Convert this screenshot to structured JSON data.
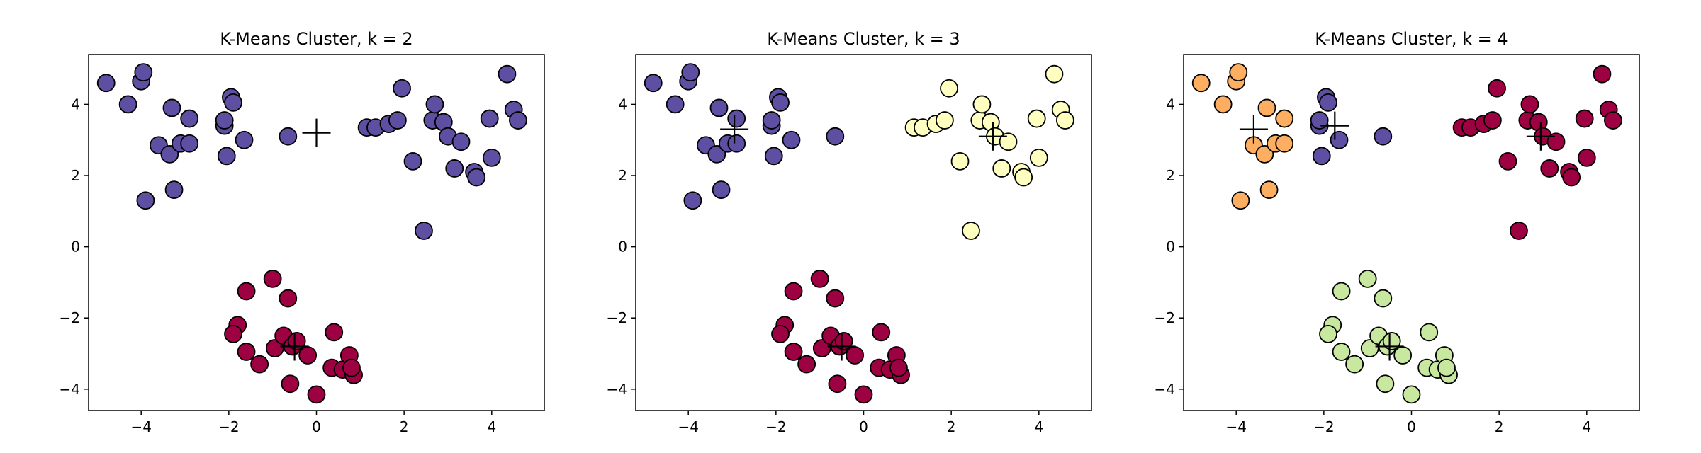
{
  "chart_data": [
    {
      "type": "scatter",
      "title": "K-Means Cluster, k = 2",
      "xlim": [
        -5.2,
        5.2
      ],
      "ylim": [
        -4.6,
        5.4
      ],
      "x_ticks": [
        -4,
        -2,
        0,
        2,
        4
      ],
      "x_tick_labels": [
        "−4",
        "−2",
        "0",
        "2",
        "4"
      ],
      "y_ticks": [
        -4,
        -2,
        0,
        2,
        4
      ],
      "y_tick_labels": [
        "−4",
        "−2",
        "0",
        "2",
        "4"
      ],
      "clusters": [
        {
          "color": "#5e4fa2",
          "points": [
            [
              -4.8,
              4.6
            ],
            [
              -4.3,
              4.0
            ],
            [
              -4.0,
              4.65
            ],
            [
              -3.95,
              4.9
            ],
            [
              -3.3,
              3.9
            ],
            [
              -3.6,
              2.85
            ],
            [
              -3.35,
              2.6
            ],
            [
              -3.1,
              2.9
            ],
            [
              -2.9,
              2.9
            ],
            [
              -2.9,
              3.6
            ],
            [
              -3.25,
              1.6
            ],
            [
              -3.9,
              1.3
            ],
            [
              -2.1,
              3.4
            ],
            [
              -2.1,
              3.55
            ],
            [
              -1.95,
              4.2
            ],
            [
              -1.9,
              4.05
            ],
            [
              -1.65,
              3.0
            ],
            [
              -2.05,
              2.55
            ],
            [
              -0.65,
              3.1
            ],
            [
              1.15,
              3.35
            ],
            [
              1.35,
              3.35
            ],
            [
              1.65,
              3.45
            ],
            [
              1.85,
              3.55
            ],
            [
              1.95,
              4.45
            ],
            [
              2.2,
              2.4
            ],
            [
              2.65,
              3.55
            ],
            [
              2.7,
              4.0
            ],
            [
              2.9,
              3.5
            ],
            [
              3.0,
              3.1
            ],
            [
              3.3,
              2.95
            ],
            [
              3.15,
              2.2
            ],
            [
              3.6,
              2.1
            ],
            [
              3.65,
              1.95
            ],
            [
              3.95,
              3.6
            ],
            [
              4.0,
              2.5
            ],
            [
              4.35,
              4.85
            ],
            [
              4.5,
              3.85
            ],
            [
              4.6,
              3.55
            ],
            [
              2.45,
              0.45
            ]
          ]
        },
        {
          "color": "#9e0142",
          "points": [
            [
              -1.0,
              -0.9
            ],
            [
              -0.65,
              -1.45
            ],
            [
              -1.6,
              -1.25
            ],
            [
              -1.8,
              -2.2
            ],
            [
              -1.9,
              -2.45
            ],
            [
              -1.6,
              -2.95
            ],
            [
              -1.3,
              -3.3
            ],
            [
              -0.95,
              -2.85
            ],
            [
              -0.75,
              -2.5
            ],
            [
              -0.55,
              -2.8
            ],
            [
              -0.45,
              -2.65
            ],
            [
              -0.6,
              -3.85
            ],
            [
              -0.2,
              -3.05
            ],
            [
              0.0,
              -4.15
            ],
            [
              0.35,
              -3.4
            ],
            [
              0.4,
              -2.4
            ],
            [
              0.6,
              -3.45
            ],
            [
              0.75,
              -3.05
            ],
            [
              0.85,
              -3.6
            ],
            [
              0.8,
              -3.4
            ]
          ]
        }
      ],
      "centroids": [
        [
          0.0,
          3.2
        ],
        [
          -0.5,
          -2.8
        ]
      ]
    },
    {
      "type": "scatter",
      "title": "K-Means Cluster, k = 3",
      "xlim": [
        -5.2,
        5.2
      ],
      "ylim": [
        -4.6,
        5.4
      ],
      "x_ticks": [
        -4,
        -2,
        0,
        2,
        4
      ],
      "x_tick_labels": [
        "−4",
        "−2",
        "0",
        "2",
        "4"
      ],
      "y_ticks": [
        -4,
        -2,
        0,
        2,
        4
      ],
      "y_tick_labels": [
        "−4",
        "−2",
        "0",
        "2",
        "4"
      ],
      "clusters": [
        {
          "color": "#5e4fa2",
          "points": [
            [
              -4.8,
              4.6
            ],
            [
              -4.3,
              4.0
            ],
            [
              -4.0,
              4.65
            ],
            [
              -3.95,
              4.9
            ],
            [
              -3.3,
              3.9
            ],
            [
              -3.6,
              2.85
            ],
            [
              -3.35,
              2.6
            ],
            [
              -3.1,
              2.9
            ],
            [
              -2.9,
              2.9
            ],
            [
              -2.9,
              3.6
            ],
            [
              -3.25,
              1.6
            ],
            [
              -3.9,
              1.3
            ],
            [
              -2.1,
              3.4
            ],
            [
              -2.1,
              3.55
            ],
            [
              -1.95,
              4.2
            ],
            [
              -1.9,
              4.05
            ],
            [
              -1.65,
              3.0
            ],
            [
              -2.05,
              2.55
            ],
            [
              -0.65,
              3.1
            ]
          ]
        },
        {
          "color": "#ffffbf",
          "points": [
            [
              1.15,
              3.35
            ],
            [
              1.35,
              3.35
            ],
            [
              1.65,
              3.45
            ],
            [
              1.85,
              3.55
            ],
            [
              1.95,
              4.45
            ],
            [
              2.2,
              2.4
            ],
            [
              2.65,
              3.55
            ],
            [
              2.7,
              4.0
            ],
            [
              2.9,
              3.5
            ],
            [
              3.0,
              3.1
            ],
            [
              3.3,
              2.95
            ],
            [
              3.15,
              2.2
            ],
            [
              3.6,
              2.1
            ],
            [
              3.65,
              1.95
            ],
            [
              3.95,
              3.6
            ],
            [
              4.0,
              2.5
            ],
            [
              4.35,
              4.85
            ],
            [
              4.5,
              3.85
            ],
            [
              4.6,
              3.55
            ],
            [
              2.45,
              0.45
            ]
          ]
        },
        {
          "color": "#9e0142",
          "points": [
            [
              -1.0,
              -0.9
            ],
            [
              -0.65,
              -1.45
            ],
            [
              -1.6,
              -1.25
            ],
            [
              -1.8,
              -2.2
            ],
            [
              -1.9,
              -2.45
            ],
            [
              -1.6,
              -2.95
            ],
            [
              -1.3,
              -3.3
            ],
            [
              -0.95,
              -2.85
            ],
            [
              -0.75,
              -2.5
            ],
            [
              -0.55,
              -2.8
            ],
            [
              -0.45,
              -2.65
            ],
            [
              -0.6,
              -3.85
            ],
            [
              -0.2,
              -3.05
            ],
            [
              0.0,
              -4.15
            ],
            [
              0.35,
              -3.4
            ],
            [
              0.4,
              -2.4
            ],
            [
              0.6,
              -3.45
            ],
            [
              0.75,
              -3.05
            ],
            [
              0.85,
              -3.6
            ],
            [
              0.8,
              -3.4
            ]
          ]
        }
      ],
      "centroids": [
        [
          -2.95,
          3.3
        ],
        [
          2.95,
          3.1
        ],
        [
          -0.5,
          -2.8
        ]
      ]
    },
    {
      "type": "scatter",
      "title": "K-Means Cluster, k = 4",
      "xlim": [
        -5.2,
        5.2
      ],
      "ylim": [
        -4.6,
        5.4
      ],
      "x_ticks": [
        -4,
        -2,
        0,
        2,
        4
      ],
      "x_tick_labels": [
        "−4",
        "−2",
        "0",
        "2",
        "4"
      ],
      "y_ticks": [
        -4,
        -2,
        0,
        2,
        4
      ],
      "y_tick_labels": [
        "−4",
        "−2",
        "0",
        "2",
        "4"
      ],
      "clusters": [
        {
          "color": "#fdae61",
          "points": [
            [
              -4.8,
              4.6
            ],
            [
              -4.3,
              4.0
            ],
            [
              -4.0,
              4.65
            ],
            [
              -3.95,
              4.9
            ],
            [
              -3.3,
              3.9
            ],
            [
              -3.6,
              2.85
            ],
            [
              -3.35,
              2.6
            ],
            [
              -3.1,
              2.9
            ],
            [
              -2.9,
              2.9
            ],
            [
              -2.9,
              3.6
            ],
            [
              -3.25,
              1.6
            ],
            [
              -3.9,
              1.3
            ]
          ]
        },
        {
          "color": "#5e4fa2",
          "points": [
            [
              -2.1,
              3.4
            ],
            [
              -2.1,
              3.55
            ],
            [
              -1.95,
              4.2
            ],
            [
              -1.9,
              4.05
            ],
            [
              -1.65,
              3.0
            ],
            [
              -2.05,
              2.55
            ],
            [
              -0.65,
              3.1
            ]
          ]
        },
        {
          "color": "#9e0142",
          "points": [
            [
              1.15,
              3.35
            ],
            [
              1.35,
              3.35
            ],
            [
              1.65,
              3.45
            ],
            [
              1.85,
              3.55
            ],
            [
              1.95,
              4.45
            ],
            [
              2.2,
              2.4
            ],
            [
              2.65,
              3.55
            ],
            [
              2.7,
              4.0
            ],
            [
              2.9,
              3.5
            ],
            [
              3.0,
              3.1
            ],
            [
              3.3,
              2.95
            ],
            [
              3.15,
              2.2
            ],
            [
              3.6,
              2.1
            ],
            [
              3.65,
              1.95
            ],
            [
              3.95,
              3.6
            ],
            [
              4.0,
              2.5
            ],
            [
              4.35,
              4.85
            ],
            [
              4.5,
              3.85
            ],
            [
              4.6,
              3.55
            ],
            [
              2.45,
              0.45
            ]
          ]
        },
        {
          "color": "#c7e89e",
          "points": [
            [
              -1.0,
              -0.9
            ],
            [
              -0.65,
              -1.45
            ],
            [
              -1.6,
              -1.25
            ],
            [
              -1.8,
              -2.2
            ],
            [
              -1.9,
              -2.45
            ],
            [
              -1.6,
              -2.95
            ],
            [
              -1.3,
              -3.3
            ],
            [
              -0.95,
              -2.85
            ],
            [
              -0.75,
              -2.5
            ],
            [
              -0.55,
              -2.8
            ],
            [
              -0.45,
              -2.65
            ],
            [
              -0.6,
              -3.85
            ],
            [
              -0.2,
              -3.05
            ],
            [
              0.0,
              -4.15
            ],
            [
              0.35,
              -3.4
            ],
            [
              0.4,
              -2.4
            ],
            [
              0.6,
              -3.45
            ],
            [
              0.75,
              -3.05
            ],
            [
              0.85,
              -3.6
            ],
            [
              0.8,
              -3.4
            ]
          ]
        }
      ],
      "centroids": [
        [
          -3.6,
          3.3
        ],
        [
          -1.75,
          3.4
        ],
        [
          2.95,
          3.1
        ],
        [
          -0.5,
          -2.8
        ]
      ]
    }
  ]
}
